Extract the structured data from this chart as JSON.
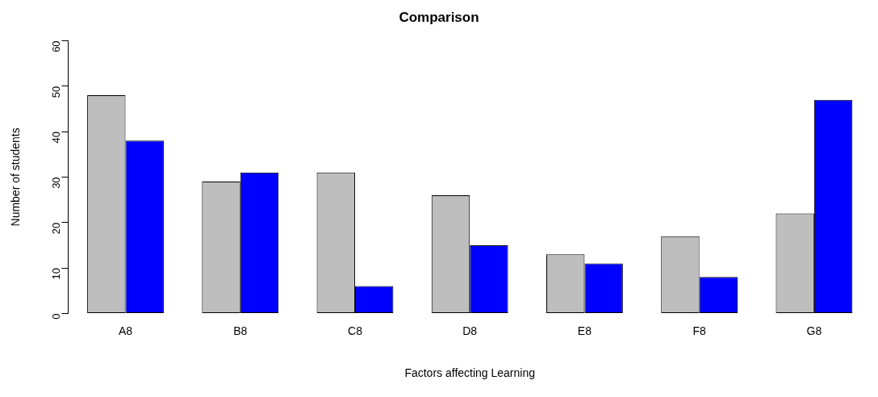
{
  "chart_data": {
    "type": "bar",
    "title": "Comparison",
    "xlabel": "Factors affecting Learning",
    "ylabel": "Number of students",
    "categories": [
      "A8",
      "B8",
      "C8",
      "D8",
      "E8",
      "F8",
      "G8"
    ],
    "series": [
      {
        "color": "#bebebe",
        "values": [
          48,
          29,
          31,
          26,
          13,
          17,
          22
        ]
      },
      {
        "color": "#0000ff",
        "values": [
          38,
          31,
          6,
          15,
          11,
          8,
          47
        ]
      }
    ],
    "ylim": [
      0,
      60
    ],
    "yticks": [
      0,
      10,
      20,
      30,
      40,
      50,
      60
    ],
    "grid": false,
    "legend": false
  }
}
